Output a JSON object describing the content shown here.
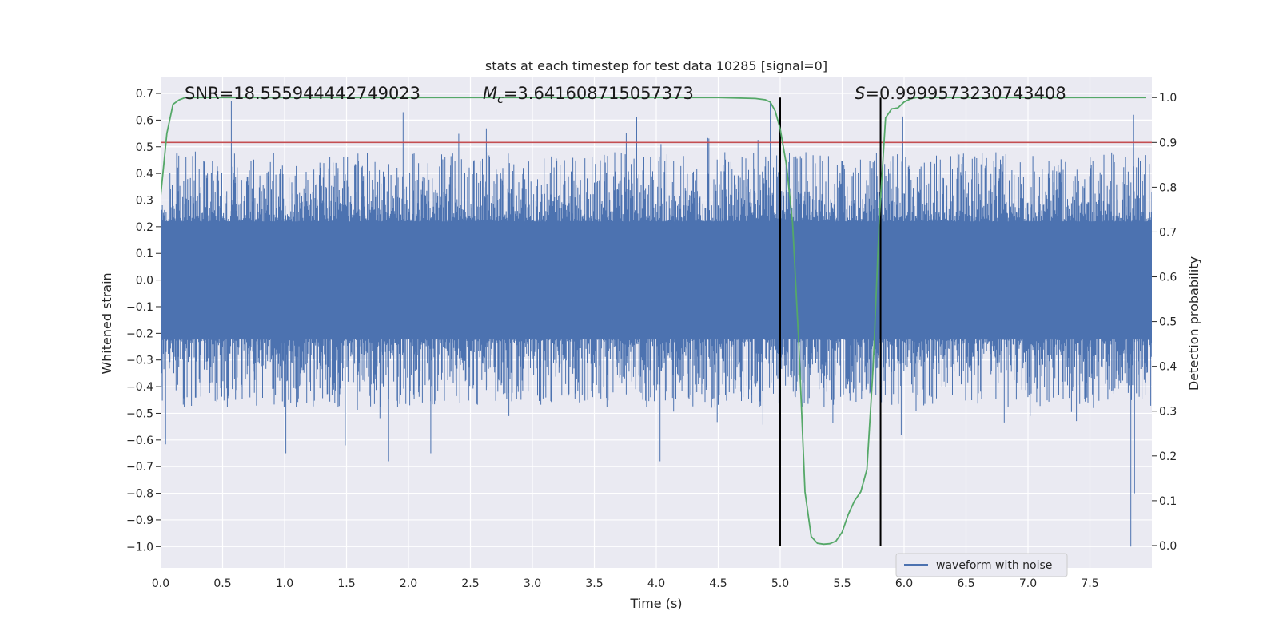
{
  "chart_data": {
    "type": "line",
    "title": "stats at each timestep for test data 10285 [signal=0]",
    "xlabel": "Time (s)",
    "ylabel": "Whitened strain",
    "y2label": "Detection probability",
    "xlim": [
      0,
      8
    ],
    "ylim": [
      -1.08,
      0.76
    ],
    "y2lim": [
      -0.05,
      1.045
    ],
    "xticks": [
      "0.0",
      "0.5",
      "1.0",
      "1.5",
      "2.0",
      "2.5",
      "3.0",
      "3.5",
      "4.0",
      "4.5",
      "5.0",
      "5.5",
      "6.0",
      "6.5",
      "7.0",
      "7.5"
    ],
    "yticks": [
      "0.7",
      "0.6",
      "0.5",
      "0.4",
      "0.3",
      "0.2",
      "0.1",
      "0.0",
      "−0.1",
      "−0.2",
      "−0.3",
      "−0.4",
      "−0.5",
      "−0.6",
      "−0.7",
      "−0.8",
      "−0.9",
      "−1.0"
    ],
    "y2ticks": [
      "1.0",
      "0.9",
      "0.8",
      "0.7",
      "0.6",
      "0.5",
      "0.4",
      "0.3",
      "0.2",
      "0.1",
      "0.0"
    ],
    "annotations": {
      "snr": "SNR=18.555944442749023",
      "mc_prefix": "M",
      "mc_sub": "c",
      "mc_value": "=3.641608715057373",
      "s_prefix": "S",
      "s_value": "=0.9999573230743408"
    },
    "threshold_y2": 0.9,
    "vertical_lines_x": [
      5.0,
      5.81
    ],
    "legend": {
      "label": "waveform with noise",
      "position": "lower right"
    },
    "grid": true,
    "series": [
      {
        "name": "waveform with noise",
        "kind": "noise",
        "core_band": [
          -0.16,
          0.17
        ],
        "typical_envelope": [
          -0.45,
          0.45
        ],
        "min_value": -1.0,
        "max_value": 0.67
      },
      {
        "kind": "probability",
        "x": [
          0.0,
          0.05,
          0.1,
          0.15,
          0.2,
          0.5,
          1.0,
          2.0,
          3.0,
          4.0,
          4.5,
          4.8,
          4.88,
          4.92,
          4.96,
          5.0,
          5.05,
          5.1,
          5.15,
          5.2,
          5.25,
          5.3,
          5.35,
          5.4,
          5.45,
          5.5,
          5.55,
          5.6,
          5.65,
          5.7,
          5.75,
          5.8,
          5.85,
          5.9,
          5.95,
          6.0,
          6.05,
          6.1,
          6.2,
          6.5,
          7.0,
          7.5,
          7.95
        ],
        "y": [
          0.78,
          0.92,
          0.985,
          0.995,
          1.0,
          1.0,
          1.0,
          1.0,
          1.0,
          1.0,
          1.0,
          0.998,
          0.995,
          0.99,
          0.97,
          0.93,
          0.85,
          0.72,
          0.45,
          0.12,
          0.02,
          0.005,
          0.003,
          0.004,
          0.01,
          0.03,
          0.07,
          0.1,
          0.12,
          0.17,
          0.4,
          0.73,
          0.955,
          0.975,
          0.977,
          0.99,
          0.997,
          1.0,
          1.0,
          1.0,
          1.0,
          1.0,
          1.0
        ]
      }
    ]
  }
}
